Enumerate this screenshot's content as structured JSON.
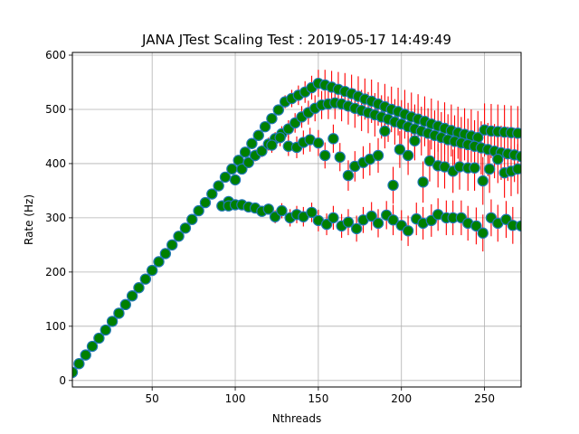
{
  "chart_data": {
    "type": "scatter",
    "title": "JANA JTest Scaling Test : 2019-05-17 14:49:49",
    "xlabel": "Nthreads",
    "ylabel": "Rate (Hz)",
    "xlim": [
      2,
      272
    ],
    "ylim": [
      -12,
      605
    ],
    "xticks": [
      50,
      100,
      150,
      200,
      250
    ],
    "yticks": [
      0,
      100,
      200,
      300,
      400,
      500,
      600
    ],
    "grid": true,
    "legend": "none",
    "marker_fill": "#008000",
    "marker_edge": "#1f77b4",
    "errorbar_color": "#ff0000",
    "series": [
      {
        "x": [
          2,
          6,
          10,
          14,
          18,
          22,
          26,
          30,
          34,
          38,
          42,
          46,
          50,
          54,
          58,
          62,
          66,
          70,
          74,
          78,
          82,
          86,
          90,
          94,
          98,
          102,
          106,
          110,
          114,
          118,
          122,
          126,
          130,
          134,
          138,
          142,
          146,
          150,
          154,
          158,
          162,
          166,
          170,
          174,
          178,
          182,
          186,
          190,
          194,
          198,
          202,
          206,
          210,
          214,
          218,
          222,
          226,
          230,
          234,
          238,
          242,
          246,
          250,
          254,
          258,
          262,
          266,
          270
        ],
        "y": [
          15,
          31,
          47,
          63,
          78,
          93,
          109,
          124,
          140,
          156,
          171,
          187,
          203,
          219,
          234,
          250,
          266,
          281,
          297,
          313,
          328,
          344,
          359,
          375,
          390,
          406,
          421,
          437,
          452,
          468,
          483,
          499,
          514,
          520,
          526,
          532,
          540,
          548,
          545,
          541,
          537,
          533,
          529,
          524,
          519,
          515,
          510,
          505,
          500,
          496,
          491,
          486,
          482,
          478,
          473,
          469,
          465,
          461,
          457,
          454,
          451,
          448,
          462,
          460,
          459,
          458,
          457,
          456
        ],
        "yerr": [
          3,
          3,
          3,
          3,
          3,
          3,
          4,
          4,
          4,
          4,
          4,
          5,
          5,
          5,
          5,
          5,
          5,
          6,
          6,
          6,
          6,
          7,
          7,
          7,
          7,
          8,
          8,
          8,
          9,
          9,
          9,
          10,
          12,
          16,
          18,
          20,
          22,
          25,
          28,
          30,
          32,
          34,
          35,
          37,
          38,
          40,
          40,
          42,
          42,
          44,
          45,
          45,
          46,
          46,
          47,
          47,
          48,
          48,
          48,
          48,
          49,
          49,
          49,
          50,
          50,
          50,
          50,
          50
        ]
      },
      {
        "x": [
          92,
          96,
          100,
          104,
          108,
          112,
          116,
          120,
          124,
          128,
          132,
          136,
          140,
          144,
          148,
          152,
          156,
          160,
          164,
          168,
          172,
          176,
          180,
          184,
          188,
          192,
          196,
          200,
          204,
          208,
          212,
          216,
          220,
          224,
          228,
          232,
          236,
          240,
          244,
          248,
          252,
          256,
          260,
          264,
          268,
          272
        ],
        "y": [
          322,
          330,
          370,
          390,
          402,
          415,
          423,
          436,
          446,
          455,
          464,
          475,
          486,
          494,
          502,
          508,
          510,
          512,
          510,
          506,
          502,
          498,
          494,
          490,
          486,
          482,
          477,
          473,
          468,
          464,
          460,
          456,
          452,
          448,
          444,
          441,
          438,
          435,
          432,
          429,
          426,
          423,
          420,
          418,
          416,
          413
        ],
        "yerr": [
          8,
          9,
          9,
          10,
          10,
          11,
          11,
          12,
          12,
          14,
          16,
          18,
          20,
          22,
          24,
          26,
          28,
          30,
          32,
          34,
          36,
          38,
          38,
          40,
          40,
          42,
          42,
          44,
          44,
          45,
          45,
          46,
          46,
          47,
          47,
          48,
          48,
          48,
          48,
          49,
          49,
          50,
          50,
          50,
          50,
          50
        ]
      },
      {
        "x": [
          122,
          127,
          132,
          137,
          141,
          145,
          150,
          154,
          159,
          163,
          168,
          172,
          177,
          181,
          186,
          190,
          195,
          199,
          204,
          208,
          213,
          217,
          222,
          226,
          231,
          235,
          240,
          244,
          249,
          253,
          258,
          262,
          266,
          270
        ],
        "y": [
          434,
          448,
          432,
          430,
          439,
          444,
          438,
          415,
          446,
          412,
          378,
          395,
          402,
          408,
          415,
          460,
          360,
          426,
          415,
          442,
          366,
          405,
          396,
          394,
          386,
          394,
          392,
          392,
          368,
          390,
          408,
          383,
          386,
          390
        ],
        "yerr": [
          14,
          16,
          18,
          20,
          22,
          22,
          24,
          24,
          26,
          26,
          28,
          28,
          30,
          30,
          32,
          32,
          34,
          34,
          36,
          36,
          38,
          38,
          40,
          40,
          40,
          42,
          42,
          42,
          44,
          44,
          44,
          46,
          46,
          46
        ]
      },
      {
        "x": [
          96,
          100,
          104,
          108,
          112,
          116,
          120,
          124,
          128,
          133,
          137,
          141,
          146,
          150,
          155,
          159,
          164,
          168,
          173,
          177,
          182,
          186,
          191,
          195,
          200,
          204,
          209,
          213,
          218,
          222,
          227,
          231,
          236,
          240,
          245,
          249,
          254,
          258,
          263,
          267,
          272
        ],
        "y": [
          322,
          324,
          324,
          320,
          318,
          312,
          316,
          302,
          313,
          300,
          306,
          302,
          310,
          295,
          288,
          300,
          285,
          292,
          280,
          296,
          303,
          290,
          305,
          296,
          286,
          276,
          298,
          290,
          295,
          306,
          300,
          300,
          300,
          290,
          285,
          272,
          300,
          290,
          297,
          286,
          285
        ],
        "yerr": [
          5,
          6,
          6,
          7,
          8,
          9,
          10,
          12,
          14,
          16,
          16,
          18,
          18,
          20,
          20,
          22,
          22,
          24,
          24,
          24,
          26,
          26,
          26,
          28,
          28,
          28,
          30,
          30,
          30,
          30,
          32,
          32,
          32,
          32,
          34,
          34,
          34,
          34,
          34,
          34,
          34
        ],
        "ghost": true
      }
    ]
  }
}
